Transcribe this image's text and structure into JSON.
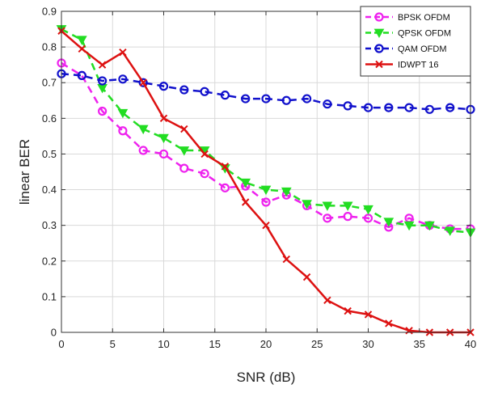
{
  "chart_data": {
    "type": "line",
    "xlabel": "SNR (dB)",
    "ylabel": "linear BER",
    "xlim": [
      0,
      40
    ],
    "ylim": [
      0,
      0.9
    ],
    "xticks": [
      0,
      5,
      10,
      15,
      20,
      25,
      30,
      35,
      40
    ],
    "yticks": [
      0,
      0.1,
      0.2,
      0.3,
      0.4,
      0.5,
      0.6,
      0.7,
      0.8,
      0.9
    ],
    "xtick_labels": [
      "0",
      "5",
      "10",
      "15",
      "20",
      "25",
      "30",
      "35",
      "40"
    ],
    "ytick_labels": [
      "0",
      "0.1",
      "0.2",
      "0.3",
      "0.4",
      "0.5",
      "0.6",
      "0.7",
      "0.8",
      "0.9"
    ],
    "grid": true,
    "legend_position": "top-right",
    "x": [
      0,
      2,
      4,
      6,
      8,
      10,
      12,
      14,
      16,
      18,
      20,
      22,
      24,
      26,
      28,
      30,
      32,
      34,
      36,
      38,
      40
    ],
    "series": [
      {
        "name": "BPSK OFDM",
        "color": "#ee22ee",
        "line_style": "dashed",
        "marker": "circle",
        "values": [
          0.755,
          0.72,
          0.62,
          0.565,
          0.51,
          0.5,
          0.46,
          0.445,
          0.405,
          0.41,
          0.365,
          0.385,
          0.355,
          0.32,
          0.325,
          0.32,
          0.295,
          0.32,
          0.3,
          0.29,
          0.29
        ]
      },
      {
        "name": "QPSK OFDM",
        "color": "#22dd22",
        "line_style": "dashed",
        "marker": "triangle-down",
        "values": [
          0.85,
          0.82,
          0.685,
          0.615,
          0.57,
          0.545,
          0.51,
          0.51,
          0.46,
          0.42,
          0.4,
          0.395,
          0.36,
          0.355,
          0.355,
          0.345,
          0.31,
          0.3,
          0.3,
          0.285,
          0.28
        ]
      },
      {
        "name": "QAM OFDM",
        "color": "#1111cc",
        "line_style": "dashed",
        "marker": "circle",
        "values": [
          0.725,
          0.72,
          0.705,
          0.71,
          0.7,
          0.69,
          0.68,
          0.675,
          0.665,
          0.655,
          0.655,
          0.65,
          0.655,
          0.64,
          0.635,
          0.63,
          0.63,
          0.63,
          0.625,
          0.63,
          0.625
        ]
      },
      {
        "name": "IDWPT 16",
        "color": "#dd1111",
        "line_style": "solid",
        "marker": "x",
        "values": [
          0.845,
          0.795,
          0.75,
          0.785,
          0.7,
          0.6,
          0.57,
          0.5,
          0.465,
          0.365,
          0.3,
          0.205,
          0.155,
          0.09,
          0.06,
          0.05,
          0.025,
          0.005,
          0.0,
          0.0,
          0.0
        ]
      }
    ]
  }
}
